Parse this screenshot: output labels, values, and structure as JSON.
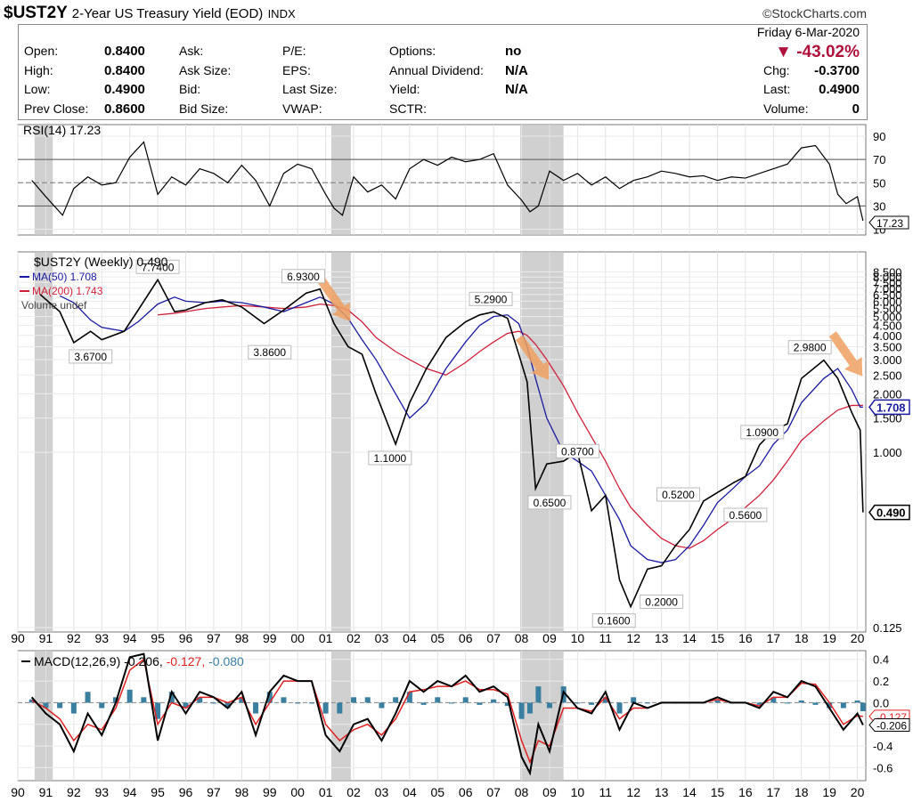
{
  "header": {
    "symbol": "$UST2Y",
    "name": "2-Year US Treasury Yield (EOD)",
    "exchange": "INDX",
    "logo": "©StockCharts.com",
    "date": "Friday  6-Mar-2020",
    "change_pct": "▼ -43.02%",
    "change_color": "#b0103c",
    "quote": [
      {
        "label": "Open:",
        "value": "0.8400"
      },
      {
        "label": "High:",
        "value": "0.8400"
      },
      {
        "label": "Low:",
        "value": "0.4900"
      },
      {
        "label": "Prev Close:",
        "value": "0.8600"
      },
      {
        "label": "Ask:",
        "value": ""
      },
      {
        "label": "Ask Size:",
        "value": ""
      },
      {
        "label": "Bid:",
        "value": ""
      },
      {
        "label": "Bid Size:",
        "value": ""
      },
      {
        "label": "P/E:",
        "value": ""
      },
      {
        "label": "EPS:",
        "value": ""
      },
      {
        "label": "Last Size:",
        "value": ""
      },
      {
        "label": "VWAP:",
        "value": ""
      },
      {
        "label": "Options:",
        "value": "no"
      },
      {
        "label": "Annual Dividend:",
        "value": "N/A"
      },
      {
        "label": "Yield:",
        "value": "N/A"
      },
      {
        "label": "SCTR:",
        "value": ""
      },
      {
        "label": "Chg:",
        "value": "-0.3700"
      },
      {
        "label": "Last:",
        "value": "0.4900"
      },
      {
        "label": "Volume:",
        "value": "0"
      }
    ]
  },
  "chart_data": [
    {
      "type": "line",
      "panel": "rsi",
      "legend": "RSI(14) 17.23",
      "current": "17.23",
      "yticks": [
        "90",
        "70",
        "50",
        "30",
        "10"
      ],
      "ylim": [
        5,
        100
      ],
      "levels": [
        70,
        50,
        30
      ],
      "x": [
        1990.5,
        1991,
        1991.6,
        1992,
        1992.5,
        1993,
        1993.5,
        1994,
        1994.5,
        1995,
        1995.5,
        1996,
        1996.5,
        1997,
        1997.5,
        1998,
        1998.5,
        1999,
        1999.5,
        2000,
        2000.5,
        2001,
        2001.3,
        2001.6,
        2002,
        2002.5,
        2003,
        2003.5,
        2004,
        2004.5,
        2005,
        2005.5,
        2006,
        2006.5,
        2007,
        2007.5,
        2008,
        2008.3,
        2008.6,
        2009,
        2009.5,
        2010,
        2010.5,
        2011,
        2011.5,
        2012,
        2012.5,
        2013,
        2013.5,
        2014,
        2014.5,
        2015,
        2015.5,
        2016,
        2016.5,
        2017,
        2017.5,
        2018,
        2018.5,
        2019,
        2019.3,
        2019.6,
        2020,
        2020.2
      ],
      "values": [
        52,
        38,
        22,
        45,
        55,
        48,
        50,
        72,
        85,
        40,
        55,
        48,
        62,
        58,
        50,
        65,
        52,
        30,
        58,
        66,
        62,
        40,
        28,
        22,
        55,
        42,
        48,
        36,
        62,
        70,
        65,
        72,
        68,
        70,
        75,
        48,
        35,
        25,
        30,
        60,
        52,
        58,
        48,
        55,
        45,
        52,
        55,
        60,
        58,
        55,
        56,
        52,
        55,
        54,
        58,
        62,
        66,
        80,
        82,
        66,
        40,
        32,
        38,
        17.23
      ]
    },
    {
      "type": "line",
      "panel": "price",
      "yscale": "log",
      "legend": [
        "$UST2Y (Weekly) 0.490",
        "MA(50) 1.708",
        "MA(200) 1.743",
        "Volume undef"
      ],
      "series_colors": {
        "price": "#000000",
        "ma50": "#1a1aa0",
        "ma200": "#d0203a"
      },
      "yticks": [
        "8.500",
        "8.000",
        "7.500",
        "7.000",
        "6.500",
        "6.000",
        "5.500",
        "5.000",
        "4.500",
        "4.000",
        "3.500",
        "3.000",
        "2.500",
        "2.000",
        "1.500",
        "1.000",
        "0.125"
      ],
      "ylim": [
        0.125,
        9
      ],
      "xticks": [
        "90",
        "91",
        "92",
        "93",
        "94",
        "95",
        "96",
        "97",
        "98",
        "99",
        "00",
        "01",
        "02",
        "03",
        "04",
        "05",
        "06",
        "07",
        "08",
        "09",
        "10",
        "11",
        "12",
        "13",
        "14",
        "15",
        "16",
        "17",
        "18",
        "19",
        "20"
      ],
      "recessions": [
        [
          1990.6,
          1991.25
        ],
        [
          2001.2,
          2001.9
        ],
        [
          2007.95,
          2009.5
        ]
      ],
      "x": [
        1990.8,
        1991.5,
        1992,
        1992.6,
        1993,
        1993.8,
        1994.3,
        1995,
        1995.6,
        1996,
        1996.7,
        1997.3,
        1998,
        1998.8,
        1999.5,
        2000.3,
        2000.8,
        2001.3,
        2001.8,
        2002.3,
        2002.8,
        2003.5,
        2004,
        2004.6,
        2005.3,
        2006,
        2006.5,
        2007,
        2007.5,
        2007.9,
        2008.2,
        2008.5,
        2008.9,
        2009.5,
        2010,
        2010.5,
        2011,
        2011.5,
        2011.9,
        2012.5,
        2013,
        2013.5,
        2014,
        2014.5,
        2015,
        2015.6,
        2016,
        2016.5,
        2017,
        2017.5,
        2018,
        2018.8,
        2019.3,
        2019.8,
        2020.1,
        2020.2
      ],
      "values": [
        6.5,
        5.3,
        3.67,
        4.2,
        3.8,
        4.2,
        5.4,
        7.74,
        5.3,
        5.4,
        5.9,
        6.1,
        5.6,
        4.6,
        5.4,
        6.6,
        6.93,
        4.6,
        3.5,
        3.2,
        2.0,
        1.1,
        1.8,
        2.7,
        3.9,
        4.7,
        5.1,
        5.29,
        4.9,
        3.2,
        2.3,
        0.65,
        0.87,
        0.9,
        1.0,
        0.5,
        0.6,
        0.22,
        0.16,
        0.25,
        0.26,
        0.33,
        0.4,
        0.56,
        0.62,
        0.7,
        0.75,
        1.09,
        1.3,
        1.4,
        2.4,
        2.98,
        2.4,
        1.6,
        1.3,
        0.49
      ],
      "ma50": [
        null,
        6.4,
        5.9,
        4.8,
        4.4,
        4.2,
        4.7,
        5.8,
        6.3,
        6.0,
        5.9,
        6.0,
        5.9,
        5.6,
        5.3,
        5.9,
        6.3,
        5.8,
        4.9,
        3.8,
        3.0,
        2.0,
        1.5,
        1.8,
        2.7,
        3.7,
        4.5,
        5.0,
        5.1,
        4.6,
        3.5,
        2.4,
        1.5,
        1.0,
        0.9,
        0.8,
        0.6,
        0.45,
        0.33,
        0.28,
        0.27,
        0.28,
        0.33,
        0.42,
        0.55,
        0.66,
        0.75,
        0.85,
        1.1,
        1.3,
        1.8,
        2.4,
        2.7,
        2.1,
        1.708,
        1.708
      ],
      "ma200": [
        null,
        null,
        null,
        null,
        null,
        null,
        null,
        5.1,
        5.2,
        5.3,
        5.5,
        5.6,
        5.7,
        5.6,
        5.5,
        5.6,
        5.8,
        5.7,
        5.4,
        4.7,
        3.9,
        3.3,
        3.0,
        2.7,
        2.5,
        2.9,
        3.3,
        3.7,
        4.1,
        4.2,
        4.0,
        3.6,
        3.0,
        2.2,
        1.6,
        1.2,
        0.9,
        0.65,
        0.52,
        0.42,
        0.36,
        0.33,
        0.32,
        0.35,
        0.4,
        0.46,
        0.52,
        0.6,
        0.72,
        0.9,
        1.15,
        1.45,
        1.65,
        1.743,
        1.743,
        1.743
      ],
      "labels": [
        {
          "x": 1992.6,
          "y": 3.67,
          "text": "3.6700"
        },
        {
          "x": 1995.0,
          "y": 7.74,
          "text": "7.7400"
        },
        {
          "x": 1999.0,
          "y": 3.86,
          "text": "3.8600"
        },
        {
          "x": 2000.2,
          "y": 6.93,
          "text": "6.9300"
        },
        {
          "x": 2003.3,
          "y": 1.1,
          "text": "1.1000"
        },
        {
          "x": 2006.9,
          "y": 5.29,
          "text": "5.2900"
        },
        {
          "x": 2009.0,
          "y": 0.65,
          "text": "0.6500"
        },
        {
          "x": 2010.0,
          "y": 0.87,
          "text": "0.8700"
        },
        {
          "x": 2011.3,
          "y": 0.16,
          "text": "0.1600"
        },
        {
          "x": 2013.0,
          "y": 0.2,
          "text": "0.2000"
        },
        {
          "x": 2013.6,
          "y": 0.52,
          "text": "0.5200"
        },
        {
          "x": 2016.0,
          "y": 0.56,
          "text": "0.5600"
        },
        {
          "x": 2016.6,
          "y": 1.09,
          "text": "1.0900"
        },
        {
          "x": 2018.3,
          "y": 2.98,
          "text": "2.9800"
        }
      ],
      "markers": [
        {
          "text": "1.708",
          "color": "#1a1aa0"
        },
        {
          "text": "0.490",
          "color": "#000000"
        }
      ],
      "arrows": [
        2001.2,
        2008.3,
        2019.5
      ]
    },
    {
      "type": "line",
      "panel": "macd",
      "legend": [
        "MACD(12,26,9)",
        "-0.206",
        "-0.127",
        "-0.080"
      ],
      "colors": {
        "macd": "#000000",
        "signal": "#e02020",
        "hist": "#3a7ea0"
      },
      "yticks": [
        "0.4",
        "0.2",
        "0.0",
        "-0.2",
        "-0.4",
        "-0.6"
      ],
      "ylim": [
        -0.72,
        0.48
      ],
      "markers": [
        "-0.127",
        "-0.206"
      ],
      "x": [
        1990.5,
        1991,
        1991.5,
        1992,
        1992.5,
        1993,
        1993.5,
        1994,
        1994.5,
        1995,
        1995.5,
        1996,
        1996.5,
        1997,
        1997.5,
        1998,
        1998.5,
        1999,
        1999.5,
        2000,
        2000.5,
        2001,
        2001.5,
        2002,
        2002.5,
        2003,
        2003.5,
        2004,
        2004.5,
        2005,
        2005.5,
        2006,
        2006.5,
        2007,
        2007.5,
        2008,
        2008.3,
        2008.6,
        2009,
        2009.5,
        2010,
        2010.5,
        2011,
        2011.5,
        2012,
        2012.5,
        2013,
        2013.5,
        2014,
        2014.5,
        2015,
        2015.5,
        2016,
        2016.5,
        2017,
        2017.5,
        2018,
        2018.5,
        2019,
        2019.5,
        2020,
        2020.2
      ],
      "macd": [
        0.05,
        -0.1,
        -0.2,
        -0.45,
        -0.1,
        -0.3,
        0.0,
        0.42,
        0.45,
        -0.35,
        0.1,
        -0.1,
        0.1,
        0.05,
        -0.05,
        0.1,
        -0.3,
        0.1,
        0.25,
        0.2,
        0.2,
        -0.3,
        -0.45,
        -0.2,
        -0.15,
        -0.35,
        -0.1,
        0.2,
        0.1,
        0.2,
        0.15,
        0.25,
        0.1,
        0.15,
        0.05,
        -0.5,
        -0.65,
        -0.2,
        -0.45,
        0.1,
        -0.05,
        -0.1,
        0.1,
        -0.25,
        0.0,
        -0.05,
        0.0,
        0.0,
        0.0,
        0.0,
        0.05,
        0.0,
        0.0,
        -0.05,
        0.1,
        0.05,
        0.2,
        0.15,
        -0.05,
        -0.25,
        -0.1,
        -0.206
      ],
      "signal": [
        0.02,
        -0.05,
        -0.15,
        -0.35,
        -0.2,
        -0.25,
        -0.05,
        0.3,
        0.4,
        -0.2,
        0.0,
        -0.05,
        0.05,
        0.05,
        0.0,
        0.05,
        -0.2,
        0.0,
        0.2,
        0.2,
        0.2,
        -0.2,
        -0.35,
        -0.25,
        -0.2,
        -0.3,
        -0.15,
        0.1,
        0.12,
        0.15,
        0.15,
        0.2,
        0.12,
        0.12,
        0.08,
        -0.35,
        -0.55,
        -0.35,
        -0.4,
        -0.05,
        -0.05,
        -0.08,
        0.05,
        -0.15,
        -0.05,
        -0.05,
        0.0,
        0.0,
        0.0,
        0.0,
        0.03,
        0.0,
        0.0,
        -0.03,
        0.05,
        0.05,
        0.18,
        0.17,
        0.0,
        -0.2,
        -0.12,
        -0.127
      ]
    }
  ]
}
